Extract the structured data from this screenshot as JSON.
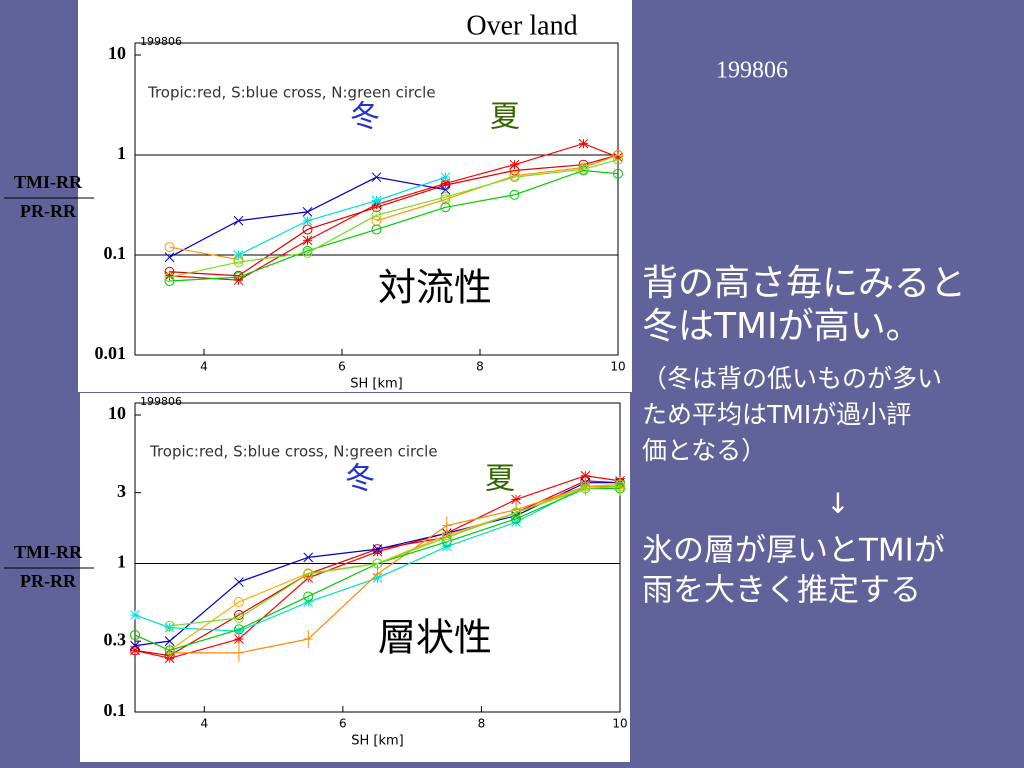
{
  "slide": {
    "date": "199806",
    "text_lines": [
      "背の高さ毎にみると",
      "冬はTMIが高い。",
      "（冬は背の低いものが多い",
      "ため平均はTMIが過小評",
      "価となる）",
      "↓",
      "氷の層が厚いとTMIが",
      "雨を大きく推定する"
    ]
  },
  "chart_data": [
    {
      "type": "line",
      "title": "Over land",
      "stamp": "199806",
      "note": "Tropic:red, S:blue cross, N:green circle",
      "winter": "冬",
      "summer": "夏",
      "label": "対流性",
      "xlabel": "SH [km]",
      "ylabel_top": "TMI-RR",
      "ylabel_bottom": "PR-RR",
      "log_y": true,
      "xlim": [
        3,
        10
      ],
      "xticks": [
        4,
        6,
        8,
        10
      ],
      "ylim": [
        0.01,
        10
      ],
      "yticks": [
        0.01,
        0.1,
        1,
        10
      ],
      "hlines": [
        1,
        0.1
      ],
      "x": [
        3.5,
        4.5,
        5.5,
        6.5,
        7.5,
        8.5,
        9.5,
        10
      ],
      "series": [
        {
          "color": "#ff0000",
          "marker": "star",
          "values": [
            0.062,
            0.056,
            0.14,
            0.32,
            0.52,
            0.8,
            1.3,
            0.95
          ]
        },
        {
          "color": "#e00000",
          "marker": "circle",
          "values": [
            0.068,
            0.062,
            0.18,
            0.3,
            0.5,
            0.7,
            0.8,
            1.0
          ]
        },
        {
          "color": "#0000cc",
          "marker": "cross",
          "values": [
            0.095,
            0.22,
            0.27,
            0.6,
            0.45,
            null,
            null,
            null
          ]
        },
        {
          "color": "#00dddd",
          "marker": "star",
          "values": [
            null,
            0.1,
            0.22,
            0.35,
            0.6,
            null,
            null,
            null
          ]
        },
        {
          "color": "#ff9900",
          "marker": "circle",
          "values": [
            0.12,
            0.09,
            null,
            0.22,
            0.36,
            0.62,
            0.75,
            1.0
          ]
        },
        {
          "color": "#00cc00",
          "marker": "circle",
          "values": [
            0.055,
            0.06,
            0.11,
            0.18,
            0.3,
            0.4,
            0.7,
            0.65
          ]
        },
        {
          "color": "#77dd22",
          "marker": "circle",
          "values": [
            0.06,
            0.085,
            0.105,
            0.25,
            0.38,
            0.6,
            0.72,
            0.9
          ]
        }
      ]
    },
    {
      "type": "line",
      "stamp": "199806",
      "note": "Tropic:red, S:blue cross, N:green circle",
      "winter": "冬",
      "summer": "夏",
      "label": "層状性",
      "xlabel": "SH [km]",
      "ylabel_top": "TMI-RR",
      "ylabel_bottom": "PR-RR",
      "log_y": true,
      "xlim": [
        3,
        10
      ],
      "xticks": [
        4,
        6,
        8,
        10
      ],
      "ylim": [
        0.1,
        10
      ],
      "yticks": [
        0.1,
        0.3,
        1,
        3,
        10
      ],
      "hlines": [
        1
      ],
      "x": [
        3,
        3.5,
        4.5,
        5.5,
        6.5,
        7.5,
        8.5,
        9.5,
        10
      ],
      "series": [
        {
          "color": "#ff0000",
          "marker": "star",
          "values": [
            0.26,
            0.23,
            0.31,
            0.8,
            1.2,
            1.6,
            2.7,
            3.9,
            3.6
          ]
        },
        {
          "color": "#e00000",
          "marker": "circle",
          "values": [
            0.26,
            0.24,
            0.45,
            0.85,
            1.25,
            1.5,
            2.2,
            3.6,
            3.5
          ]
        },
        {
          "color": "#0000cc",
          "marker": "cross",
          "values": [
            0.28,
            0.3,
            0.75,
            1.1,
            1.25,
            1.6,
            2.1,
            3.5,
            3.5
          ]
        },
        {
          "color": "#00dddd",
          "marker": "star",
          "values": [
            0.45,
            0.37,
            0.35,
            0.55,
            0.8,
            1.3,
            1.9,
            3.3,
            3.4
          ]
        },
        {
          "color": "#ff8800",
          "marker": "plus",
          "values": [
            null,
            0.25,
            0.25,
            0.31,
            0.85,
            1.8,
            2.3,
            3.3,
            3.3
          ]
        },
        {
          "color": "#ffaa00",
          "marker": "circle",
          "values": [
            0.33,
            0.26,
            0.55,
            0.86,
            1.0,
            1.55,
            2.2,
            3.3,
            3.4
          ]
        },
        {
          "color": "#00cc00",
          "marker": "circle",
          "values": [
            0.33,
            0.26,
            0.36,
            0.6,
            1.0,
            1.4,
            2.0,
            3.2,
            3.2
          ]
        },
        {
          "color": "#77dd22",
          "marker": "circle",
          "values": [
            null,
            0.38,
            0.43,
            0.85,
            1.0,
            1.5,
            2.2,
            3.2,
            3.3
          ]
        }
      ]
    }
  ]
}
